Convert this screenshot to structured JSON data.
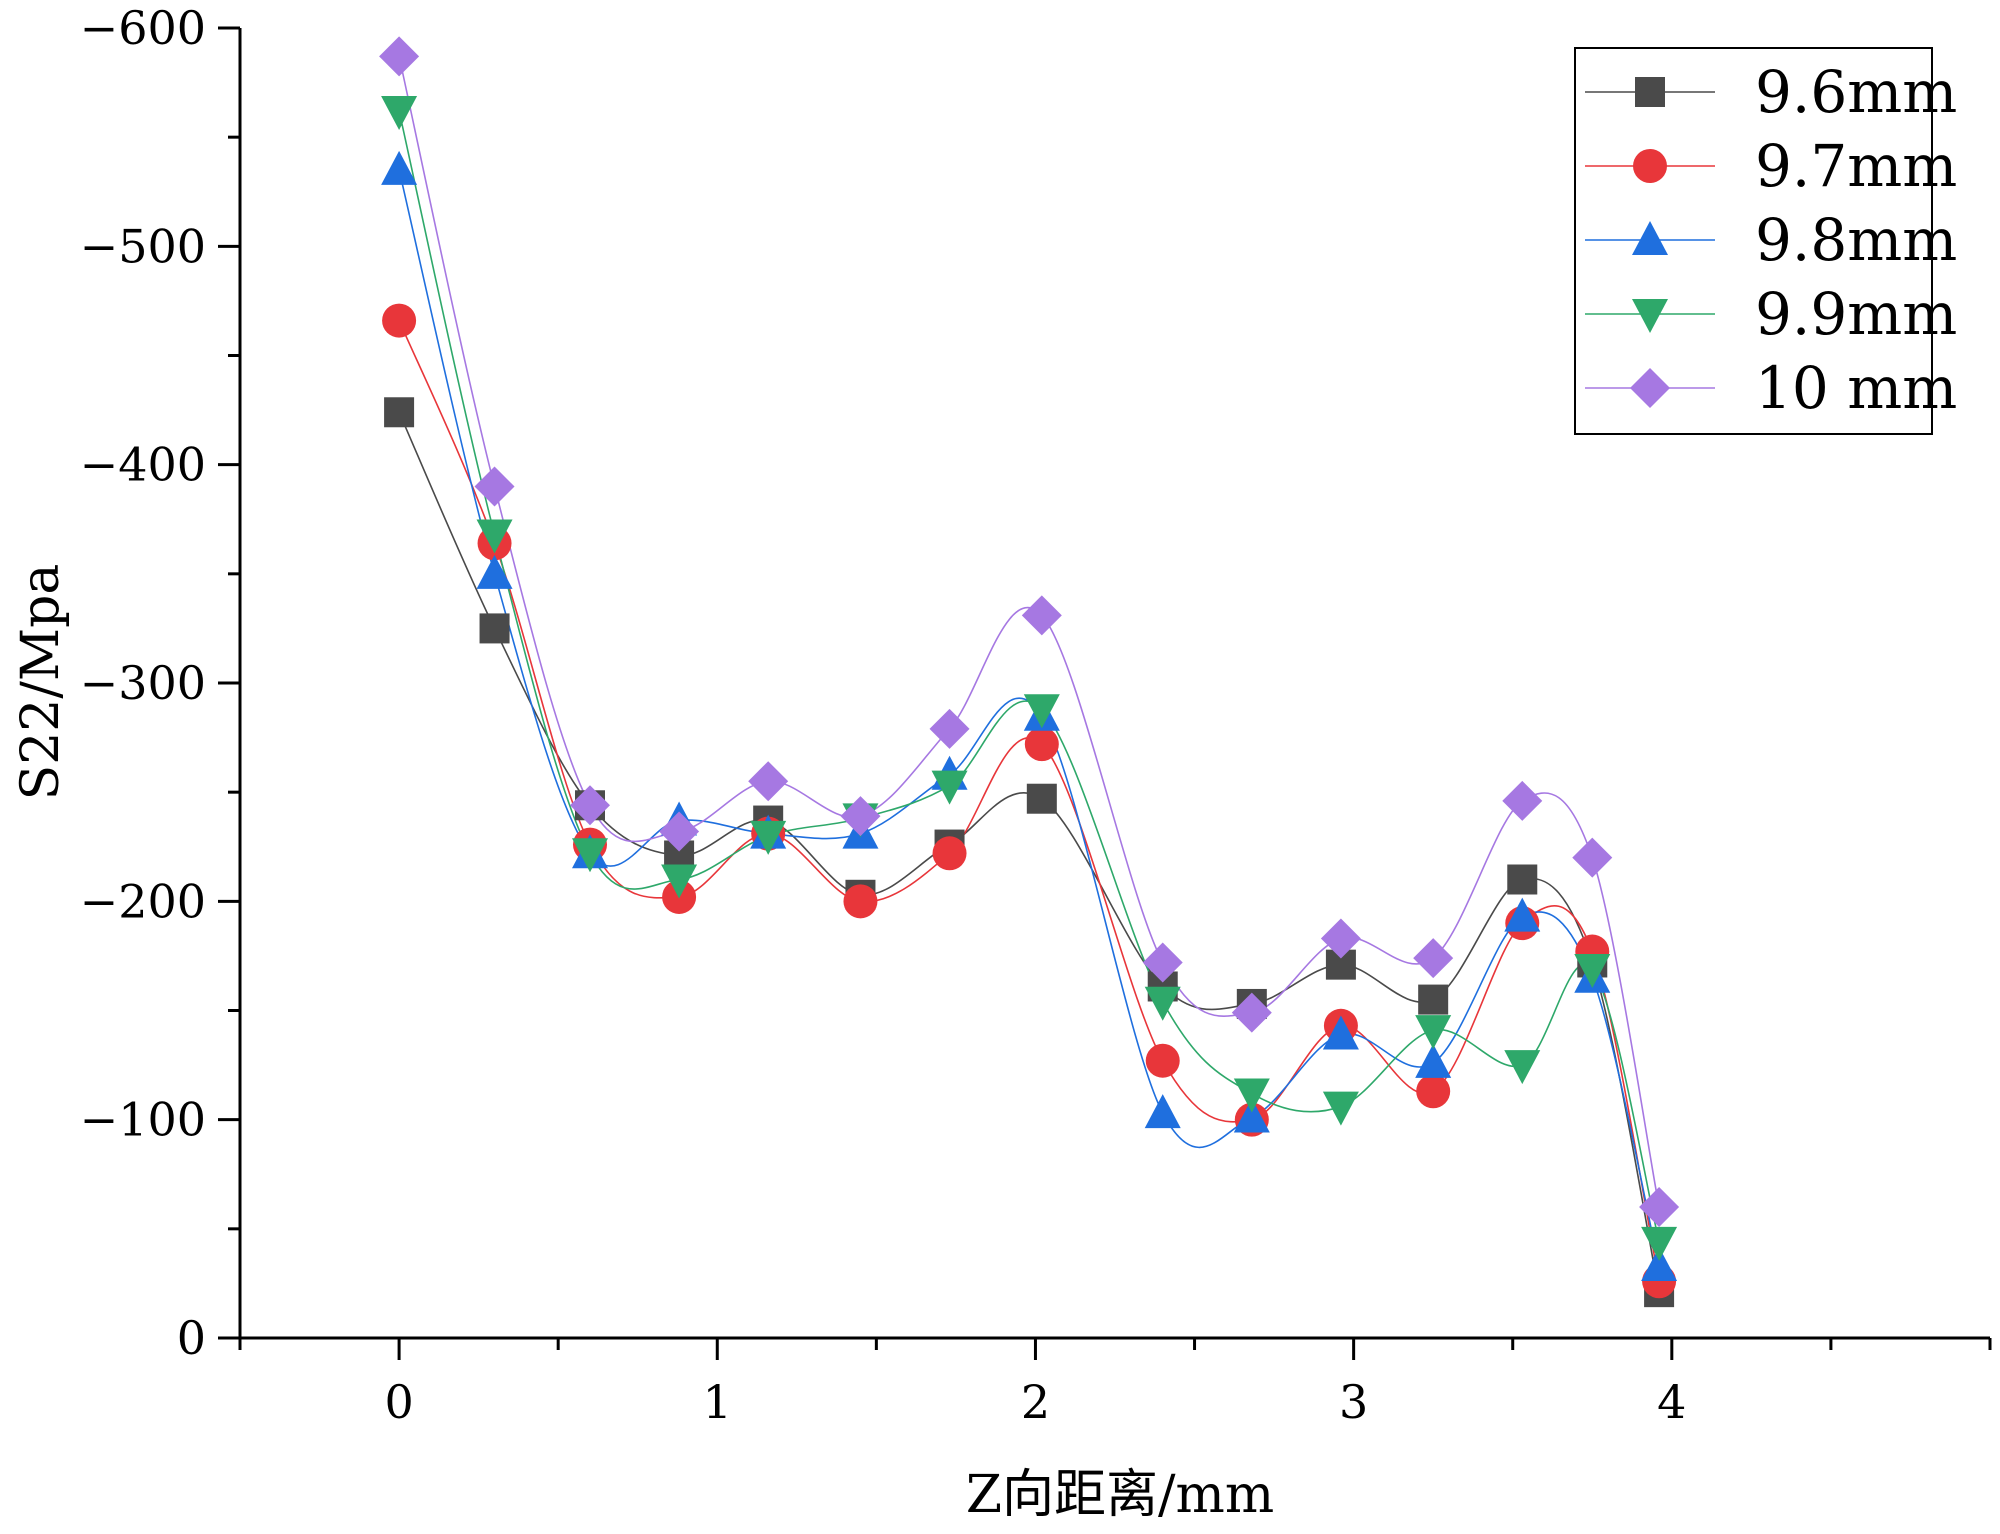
{
  "chart_data": {
    "type": "line",
    "title": "",
    "xlabel": "Z向距离/mm",
    "ylabel": "S22/Mpa",
    "xlim": [
      -0.5,
      5.0
    ],
    "ylim": [
      0,
      -600
    ],
    "y_axis_inverted": true,
    "xticks": [
      0,
      1,
      2,
      3,
      4
    ],
    "xtick_labels": [
      "0",
      "1",
      "2",
      "3",
      "4"
    ],
    "yticks": [
      0,
      -100,
      -200,
      -300,
      -400,
      -500,
      -600
    ],
    "ytick_labels": [
      "0",
      "−100",
      "−200",
      "−300",
      "−400",
      "−500",
      "−600"
    ],
    "grid": false,
    "legend_position": "top-right",
    "x": [
      0,
      0.3,
      0.6,
      0.88,
      1.16,
      1.45,
      1.73,
      2.02,
      2.4,
      2.68,
      2.96,
      3.25,
      3.53,
      3.75,
      3.96
    ],
    "series": [
      {
        "name": "9.6mm",
        "color": "#4a4a4a",
        "marker": "square",
        "values": [
          -424,
          -325,
          -244,
          -221,
          -237,
          -203,
          -226,
          -247,
          -161,
          -153,
          -171,
          -155,
          -210,
          -172,
          -21
        ]
      },
      {
        "name": "9.7mm",
        "color": "#e8363a",
        "marker": "circle",
        "values": [
          -466,
          -364,
          -226,
          -202,
          -231,
          -200,
          -222,
          -272,
          -127,
          -100,
          -143,
          -113,
          -190,
          -177,
          -26
        ]
      },
      {
        "name": "9.8mm",
        "color": "#1f6fde",
        "marker": "triangle-up",
        "values": [
          -535,
          -350,
          -222,
          -237,
          -231,
          -231,
          -258,
          -285,
          -103,
          -101,
          -139,
          -126,
          -193,
          -165,
          -33
        ]
      },
      {
        "name": "9.9mm",
        "color": "#2ea86a",
        "marker": "triangle-down",
        "values": [
          -562,
          -368,
          -222,
          -210,
          -230,
          -238,
          -253,
          -288,
          -154,
          -112,
          -106,
          -141,
          -125,
          -169,
          -44
        ]
      },
      {
        "name": "10 mm",
        "color": "#a678e2",
        "marker": "diamond",
        "values": [
          -587,
          -390,
          -244,
          -232,
          -255,
          -239,
          -279,
          -331,
          -172,
          -149,
          -183,
          -174,
          -246,
          -220,
          -60
        ]
      }
    ]
  }
}
